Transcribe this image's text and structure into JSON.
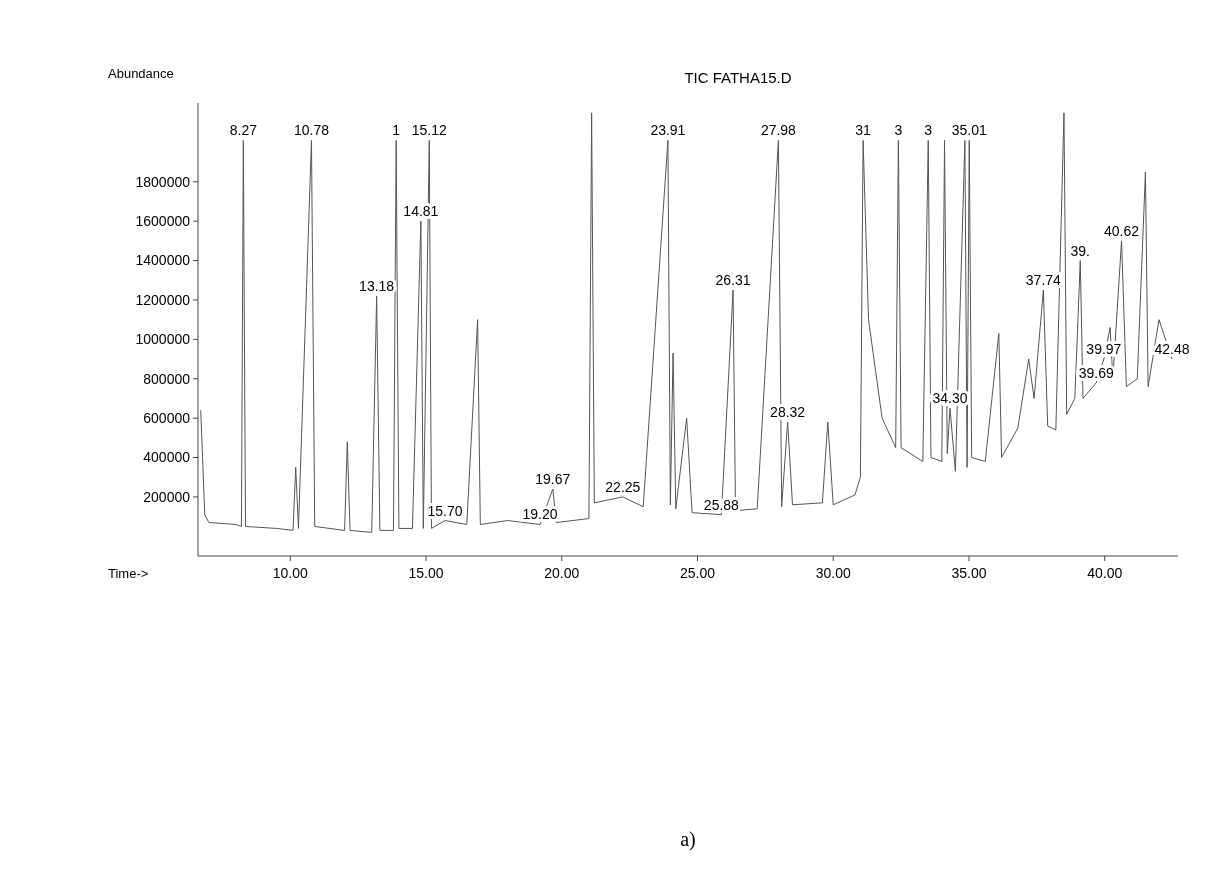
{
  "chart_data": {
    "type": "line",
    "title": "TIC FATHA15.D",
    "xlabel": "Time->",
    "ylabel": "Abundance",
    "xlim": [
      6.6,
      42.7
    ],
    "xticks": [
      {
        "value": 10,
        "label": "10.00"
      },
      {
        "value": 15,
        "label": "15.00"
      },
      {
        "value": 20,
        "label": "20.00"
      },
      {
        "value": 25,
        "label": "25.00"
      },
      {
        "value": 30,
        "label": "30.00"
      },
      {
        "value": 35,
        "label": "35.00"
      },
      {
        "value": 40,
        "label": "40.00"
      }
    ],
    "ylim": [
      -100000,
      2200000
    ],
    "yticks": [
      200000,
      400000,
      600000,
      800000,
      1000000,
      1200000,
      1400000,
      1600000,
      1800000
    ],
    "grid": false,
    "line_style": "solid",
    "series": [
      {
        "color": "#555555",
        "x": [
          6.7,
          6.85,
          7.0,
          8.0,
          8.2,
          8.27,
          8.35,
          9.5,
          10.1,
          10.2,
          10.3,
          10.78,
          10.9,
          12.0,
          12.1,
          12.2,
          13.0,
          13.18,
          13.3,
          13.8,
          13.9,
          14.0,
          14.5,
          14.81,
          14.9,
          15.12,
          15.2,
          15.7,
          16.5,
          16.9,
          17.0,
          18.0,
          19.2,
          19.67,
          19.8,
          21.0,
          21.1,
          21.2,
          22.25,
          23.0,
          23.91,
          24.0,
          24.1,
          24.2,
          24.6,
          24.8,
          25.88,
          26.31,
          26.4,
          27.2,
          27.98,
          28.1,
          28.32,
          28.5,
          29.6,
          29.8,
          30.0,
          30.8,
          31.0,
          31.1,
          31.3,
          31.8,
          32.3,
          32.4,
          32.5,
          33.3,
          33.5,
          33.6,
          34.0,
          34.1,
          34.2,
          34.3,
          34.5,
          34.85,
          34.93,
          35.01,
          35.1,
          35.6,
          36.1,
          36.2,
          36.8,
          37.2,
          37.4,
          37.74,
          37.9,
          38.2,
          38.5,
          38.6,
          38.9,
          39.1,
          39.2,
          39.69,
          39.97,
          40.2,
          40.3,
          40.62,
          40.8,
          41.2,
          41.5,
          41.6,
          42.0,
          42.48
        ],
        "values": [
          640000,
          110000,
          70000,
          60000,
          50000,
          2010000,
          50000,
          40000,
          30000,
          350000,
          40000,
          2010000,
          50000,
          30000,
          480000,
          30000,
          20000,
          1220000,
          30000,
          30000,
          2010000,
          40000,
          40000,
          1600000,
          40000,
          2010000,
          40000,
          80000,
          60000,
          1100000,
          60000,
          80000,
          60000,
          240000,
          70000,
          90000,
          2150000,
          170000,
          200000,
          150000,
          2010000,
          160000,
          930000,
          140000,
          600000,
          120000,
          110000,
          1250000,
          130000,
          140000,
          2010000,
          150000,
          580000,
          160000,
          170000,
          580000,
          160000,
          210000,
          300000,
          2010000,
          1100000,
          600000,
          450000,
          2010000,
          450000,
          380000,
          2010000,
          400000,
          380000,
          2010000,
          420000,
          650000,
          330000,
          2010000,
          350000,
          2010000,
          400000,
          380000,
          1030000,
          400000,
          550000,
          900000,
          700000,
          1250000,
          560000,
          540000,
          2150000,
          620000,
          700000,
          1400000,
          700000,
          780000,
          900000,
          1060000,
          800000,
          1500000,
          760000,
          800000,
          1850000,
          760000,
          1100000,
          900000
        ]
      }
    ],
    "annotations": [
      {
        "text": "8.27",
        "x": 8.27,
        "y": 2010000
      },
      {
        "text": "10.78",
        "x": 10.78,
        "y": 2010000
      },
      {
        "text": "1",
        "x": 13.9,
        "y": 2010000
      },
      {
        "text": "15.12",
        "x": 15.12,
        "y": 2010000
      },
      {
        "text": "13.18",
        "x": 13.18,
        "y": 1220000
      },
      {
        "text": "14.81",
        "x": 14.81,
        "y": 1600000
      },
      {
        "text": "15.70",
        "x": 15.7,
        "y": 80000
      },
      {
        "text": "19.20",
        "x": 19.2,
        "y": 60000
      },
      {
        "text": "19.67",
        "x": 19.67,
        "y": 240000
      },
      {
        "text": "22.25",
        "x": 22.25,
        "y": 200000
      },
      {
        "text": "23.91",
        "x": 23.91,
        "y": 2010000
      },
      {
        "text": "25.88",
        "x": 25.88,
        "y": 110000
      },
      {
        "text": "26.31",
        "x": 26.31,
        "y": 1250000
      },
      {
        "text": "27.98",
        "x": 27.98,
        "y": 2010000
      },
      {
        "text": "28.32",
        "x": 28.32,
        "y": 580000
      },
      {
        "text": "31",
        "x": 31.1,
        "y": 2010000
      },
      {
        "text": "3",
        "x": 32.4,
        "y": 2010000
      },
      {
        "text": "3",
        "x": 33.5,
        "y": 2010000
      },
      {
        "text": "35.01",
        "x": 35.01,
        "y": 2010000
      },
      {
        "text": "34.30",
        "x": 34.3,
        "y": 650000
      },
      {
        "text": "37.74",
        "x": 37.74,
        "y": 1250000
      },
      {
        "text": "39.",
        "x": 39.1,
        "y": 1400000
      },
      {
        "text": "40.62",
        "x": 40.62,
        "y": 1500000
      },
      {
        "text": "39.97",
        "x": 39.97,
        "y": 900000
      },
      {
        "text": "39.69",
        "x": 39.69,
        "y": 780000
      },
      {
        "text": "42.48",
        "x": 42.48,
        "y": 900000
      },
      "a)"
    ]
  }
}
